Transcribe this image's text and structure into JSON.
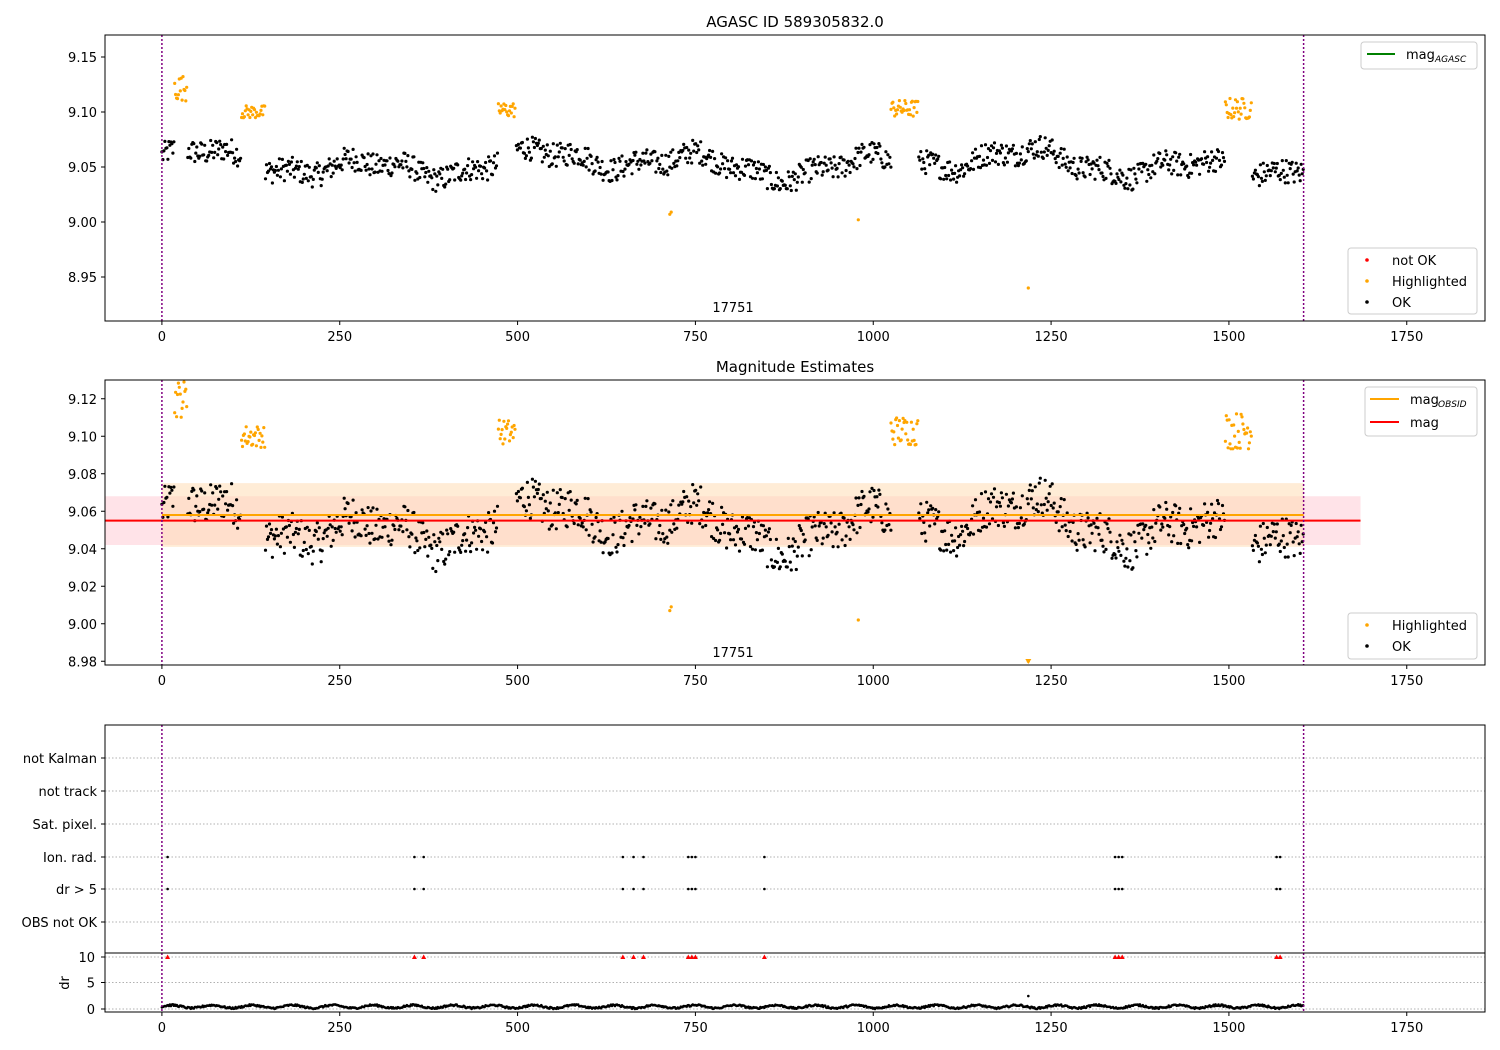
{
  "chart_data": [
    {
      "type": "scatter",
      "title": "AGASC ID 589305832.0",
      "xlim": [
        -80,
        1860
      ],
      "ylim": [
        8.91,
        9.17
      ],
      "xticks": [
        "0",
        "250",
        "500",
        "750",
        "1000",
        "1250",
        "1500",
        "1750"
      ],
      "xtick_values": [
        0,
        250,
        500,
        750,
        1000,
        1250,
        1500,
        1750
      ],
      "yticks": [
        "8.95",
        "9.00",
        "9.05",
        "9.10",
        "9.15"
      ],
      "ytick_values": [
        8.95,
        9.0,
        9.05,
        9.1,
        9.15
      ],
      "obsid_label": "17751",
      "obsid_label_x": 800,
      "vlines": [
        0,
        1605
      ],
      "legend_lines": [
        {
          "label": "mag",
          "sub": "AGASC",
          "color": "#008000"
        }
      ],
      "legend_markers": [
        {
          "label": "not OK",
          "color": "#ff0000"
        },
        {
          "label": "Highlighted",
          "color": "#ffa500"
        },
        {
          "label": "OK",
          "color": "#000000"
        }
      ],
      "segments": [
        [
          0,
          1605,
          9.055,
          9.012
        ]
      ],
      "highlight_clusters": [
        {
          "x0": 18,
          "x1": 36,
          "center": 9.122,
          "spread": 0.012
        },
        {
          "x0": 112,
          "x1": 145,
          "center": 9.1,
          "spread": 0.006
        },
        {
          "x0": 473,
          "x1": 497,
          "center": 9.102,
          "spread": 0.007
        },
        {
          "x0": 1025,
          "x1": 1063,
          "center": 9.103,
          "spread": 0.008
        },
        {
          "x0": 1495,
          "x1": 1532,
          "center": 9.103,
          "spread": 0.01
        }
      ],
      "highlight_outliers": [
        {
          "x": 714,
          "y": 9.007
        },
        {
          "x": 716,
          "y": 9.009
        },
        {
          "x": 979,
          "y": 9.002
        },
        {
          "x": 1218,
          "y": 8.94
        }
      ]
    },
    {
      "type": "scatter",
      "title": "Magnitude Estimates",
      "xlim": [
        -80,
        1860
      ],
      "ylim": [
        8.978,
        9.13
      ],
      "xticks": [
        "0",
        "250",
        "500",
        "750",
        "1000",
        "1250",
        "1500",
        "1750"
      ],
      "xtick_values": [
        0,
        250,
        500,
        750,
        1000,
        1250,
        1500,
        1750
      ],
      "yticks": [
        "8.98",
        "9.00",
        "9.02",
        "9.04",
        "9.06",
        "9.08",
        "9.10",
        "9.12"
      ],
      "ytick_values": [
        8.98,
        9.0,
        9.02,
        9.04,
        9.06,
        9.08,
        9.1,
        9.12
      ],
      "obsid_label": "17751",
      "obsid_label_x": 800,
      "vlines": [
        0,
        1605
      ],
      "legend_lines": [
        {
          "label": "mag",
          "sub": "OBSID",
          "color": "#ffa500"
        },
        {
          "label": "mag",
          "sub": "",
          "color": "#ff0000"
        }
      ],
      "legend_markers": [
        {
          "label": "Highlighted",
          "color": "#ffa500"
        },
        {
          "label": "OK",
          "color": "#000000"
        }
      ],
      "mag_line": {
        "y": 9.055,
        "x0": -80,
        "x1": 1685,
        "color": "#ff0000"
      },
      "mag_band": {
        "y0": 9.042,
        "y1": 9.068,
        "x0": -80,
        "x1": 1685,
        "color": "#ffc0cb"
      },
      "obsid_line": {
        "y": 9.058,
        "x0": 0,
        "x1": 1605,
        "color": "#ffa500"
      },
      "obsid_band": {
        "y0": 9.041,
        "y1": 9.075,
        "x0": 0,
        "x1": 1605,
        "color": "#ffdcb4"
      },
      "segments": [
        [
          0,
          1605,
          9.055,
          9.012
        ]
      ],
      "highlight_clusters": [
        {
          "x0": 18,
          "x1": 36,
          "center": 9.12,
          "spread": 0.01
        },
        {
          "x0": 112,
          "x1": 145,
          "center": 9.1,
          "spread": 0.006
        },
        {
          "x0": 473,
          "x1": 497,
          "center": 9.102,
          "spread": 0.007
        },
        {
          "x0": 1025,
          "x1": 1063,
          "center": 9.103,
          "spread": 0.008
        },
        {
          "x0": 1495,
          "x1": 1532,
          "center": 9.103,
          "spread": 0.01
        }
      ],
      "highlight_outliers": [
        {
          "x": 714,
          "y": 9.007
        },
        {
          "x": 716,
          "y": 9.009
        },
        {
          "x": 979,
          "y": 9.002
        },
        {
          "x": 1218,
          "y": 8.98
        }
      ]
    },
    {
      "type": "scatter",
      "title": "",
      "xlim": [
        -80,
        1860
      ],
      "flag_rows": [
        "not Kalman",
        "not track",
        "Sat. pixel.",
        "Ion. rad.",
        "dr > 5",
        "OBS not OK"
      ],
      "flag_x": [
        8,
        355,
        368,
        648,
        663,
        677,
        740,
        745,
        750,
        847,
        1340,
        1345,
        1350,
        1567,
        1572
      ],
      "flag_rows_marked": [
        "Ion. rad.",
        "dr > 5"
      ],
      "vlines": [
        0,
        1605
      ]
    },
    {
      "type": "scatter",
      "title": "",
      "ylabel": "dr",
      "xlim": [
        -80,
        1860
      ],
      "ylim": [
        0,
        10
      ],
      "yticks": [
        "0",
        "5",
        "10"
      ],
      "ytick_values": [
        0,
        5,
        10
      ],
      "xticks": [
        "0",
        "250",
        "500",
        "750",
        "1000",
        "1250",
        "1500",
        "1750"
      ],
      "xtick_values": [
        0,
        250,
        500,
        750,
        1000,
        1250,
        1500,
        1750
      ],
      "dr_baseline": 0.4,
      "dr_outlier": {
        "x": 1218,
        "y": 2.2
      },
      "red_marker_x": [
        8,
        355,
        368,
        648,
        663,
        677,
        740,
        745,
        750,
        847,
        1340,
        1345,
        1350,
        1567,
        1572
      ],
      "red_marker_y": 10,
      "vlines": [
        0,
        1605
      ]
    }
  ]
}
